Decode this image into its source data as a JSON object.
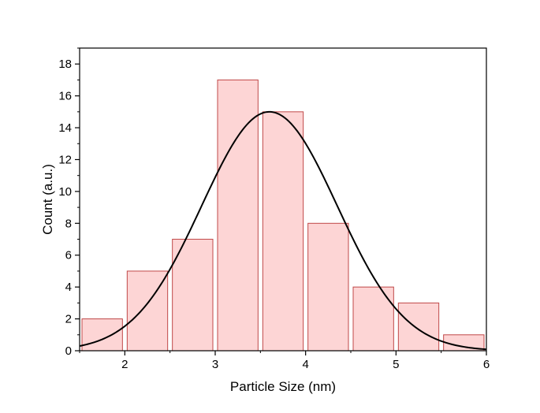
{
  "chart_data": {
    "type": "bar",
    "title": "",
    "xlabel": "Particle Size (nm)",
    "ylabel": "Count (a.u.)",
    "xlim": [
      1.5,
      6
    ],
    "ylim": [
      0,
      19
    ],
    "xticks": [
      2,
      3,
      4,
      5,
      6
    ],
    "yticks": [
      0,
      2,
      4,
      6,
      8,
      10,
      12,
      14,
      16,
      18
    ],
    "bins": [
      {
        "start": 1.5,
        "end": 2.0,
        "value": 2
      },
      {
        "start": 2.0,
        "end": 2.5,
        "value": 5
      },
      {
        "start": 2.5,
        "end": 3.0,
        "value": 7
      },
      {
        "start": 3.0,
        "end": 3.5,
        "value": 17
      },
      {
        "start": 3.5,
        "end": 4.0,
        "value": 15
      },
      {
        "start": 4.0,
        "end": 4.5,
        "value": 8
      },
      {
        "start": 4.5,
        "end": 5.0,
        "value": 4
      },
      {
        "start": 5.0,
        "end": 5.5,
        "value": 3
      },
      {
        "start": 5.5,
        "end": 6.0,
        "value": 1
      }
    ],
    "fit_curve": {
      "type": "gaussian",
      "amplitude": 15,
      "mean": 3.6,
      "sigma": 0.75
    },
    "grid": false,
    "legend": "none",
    "colors": {
      "bar_fill": "#fdd5d5",
      "bar_stroke": "#c04848",
      "curve": "#000000",
      "axis": "#000000"
    }
  }
}
